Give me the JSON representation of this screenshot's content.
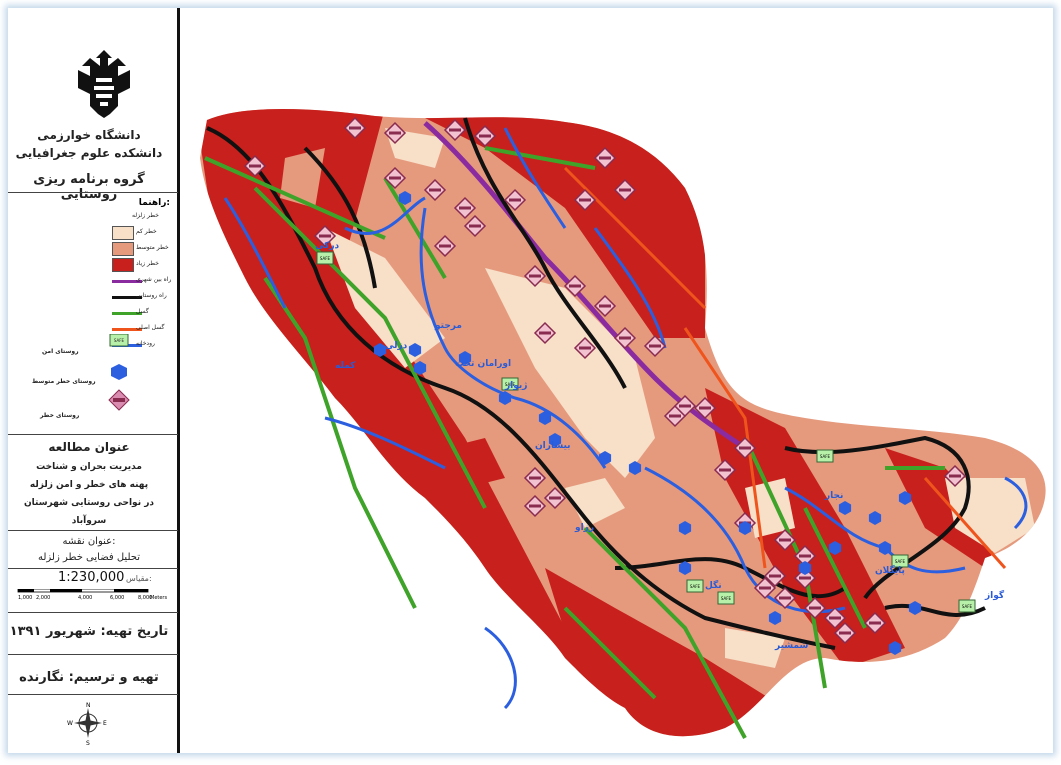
{
  "institution": {
    "line1": "دانشگاه خوارزمی",
    "line2": "دانشکده علوم جغرافیایی",
    "group": "گروه برنامه ریزی روستایی"
  },
  "legend": {
    "title": "راهنما:",
    "items": [
      {
        "label": "خطر زلزله",
        "kind": "header"
      },
      {
        "label": "خطر کم",
        "kind": "fill",
        "color": "#f7dfc8"
      },
      {
        "label": "خطر متوسط",
        "kind": "fill",
        "color": "#e59a7e"
      },
      {
        "label": "خطر زیاد",
        "kind": "fill",
        "color": "#c8201c"
      },
      {
        "label": "راه بین شهری",
        "kind": "line",
        "color": "#8a2ba0"
      },
      {
        "label": "راه روستایی",
        "kind": "line",
        "color": "#111111"
      },
      {
        "label": "گسل",
        "kind": "line",
        "color": "#3fa32a"
      },
      {
        "label": "گسل اصلی",
        "kind": "line",
        "color": "#f0541d"
      },
      {
        "label": "رودخانه",
        "kind": "line",
        "color": "#2b5fe0"
      }
    ],
    "symbols": [
      {
        "label": "روستای امن",
        "icon": "safe-icon",
        "badge": "SAFE"
      },
      {
        "label": "روستای خطر متوسط",
        "icon": "hexagon-icon"
      },
      {
        "label": "روستای خطر",
        "icon": "danger-diamond-icon"
      }
    ]
  },
  "study": {
    "heading": "عنوان مطالعه",
    "lines": [
      "مدیریت بحران و شناخت",
      "پهنه های خطر و امن زلزله",
      "در نواحی روستایی شهرستان",
      "سروآباد"
    ]
  },
  "map_title": {
    "heading": "عنوان نقشه:",
    "value": "تحلیل فضایی خطر زلزله"
  },
  "scale": {
    "label": "مقیاس:",
    "value": "1:230,000",
    "ticks": [
      "1,000",
      "2,000",
      "4,000",
      "6,000",
      "8,000"
    ],
    "units": "Meters"
  },
  "date": "تاریخ تهیه: شهریور ۱۳۹۱",
  "author": "تهیه و ترسیم: نگارنده",
  "north": {
    "n": "N",
    "s": "S",
    "e": "E",
    "w": "W"
  },
  "places": [
    "مرجتو",
    "اورامان تخت",
    "دزلی",
    "ژیوار",
    "بیساران",
    "کمله",
    "رزاو",
    "پایگلان",
    "گواز",
    "درکی",
    "نجار",
    "شمشیر",
    "نگل"
  ],
  "colors": {
    "low": "#f7dfc8",
    "medium": "#e59a7e",
    "high": "#c8201c",
    "intercity": "#8a2ba0",
    "rural": "#111111",
    "fault": "#3fa32a",
    "main_fault": "#f0541d",
    "river": "#2b5fe0"
  }
}
